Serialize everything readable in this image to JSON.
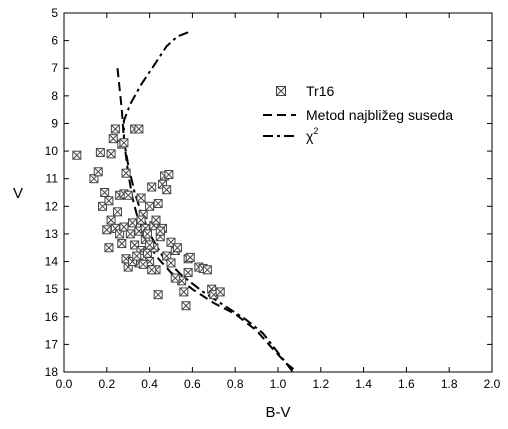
{
  "chart_data": {
    "type": "scatter",
    "xlabel": "B-V",
    "ylabel": "V",
    "xlim": [
      0.0,
      2.0
    ],
    "ylim": [
      5,
      18
    ],
    "y_inverted": true,
    "x_ticks": [
      "0.0",
      "0.2",
      "0.4",
      "0.6",
      "0.8",
      "1.0",
      "1.2",
      "1.4",
      "1.6",
      "1.8",
      "2.0"
    ],
    "y_ticks": [
      "5",
      "6",
      "7",
      "8",
      "9",
      "10",
      "11",
      "12",
      "13",
      "14",
      "15",
      "16",
      "17",
      "18"
    ],
    "legend_position": "top-right",
    "legend": {
      "tr16": "Tr16",
      "dashed": "Metod najbližeg suseda",
      "chi_base": "χ",
      "chi_sup": "2"
    },
    "series": [
      {
        "name": "Tr16",
        "kind": "points",
        "marker": "crossed-square",
        "points": [
          [
            0.06,
            10.15
          ],
          [
            0.14,
            11.0
          ],
          [
            0.16,
            10.75
          ],
          [
            0.17,
            10.05
          ],
          [
            0.19,
            11.5
          ],
          [
            0.22,
            10.1
          ],
          [
            0.23,
            9.55
          ],
          [
            0.24,
            9.2
          ],
          [
            0.27,
            9.75
          ],
          [
            0.28,
            9.7
          ],
          [
            0.33,
            9.2
          ],
          [
            0.35,
            9.2
          ],
          [
            0.29,
            10.8
          ],
          [
            0.18,
            12.0
          ],
          [
            0.21,
            11.8
          ],
          [
            0.22,
            12.5
          ],
          [
            0.25,
            12.2
          ],
          [
            0.26,
            11.6
          ],
          [
            0.28,
            11.55
          ],
          [
            0.3,
            11.6
          ],
          [
            0.24,
            12.8
          ],
          [
            0.2,
            12.85
          ],
          [
            0.21,
            13.5
          ],
          [
            0.26,
            13.0
          ],
          [
            0.27,
            13.35
          ],
          [
            0.28,
            12.75
          ],
          [
            0.29,
            13.9
          ],
          [
            0.3,
            14.2
          ],
          [
            0.31,
            13.0
          ],
          [
            0.32,
            12.6
          ],
          [
            0.33,
            13.4
          ],
          [
            0.35,
            12.9
          ],
          [
            0.36,
            13.6
          ],
          [
            0.36,
            11.7
          ],
          [
            0.37,
            12.3
          ],
          [
            0.38,
            12.8
          ],
          [
            0.38,
            13.2
          ],
          [
            0.39,
            13.7
          ],
          [
            0.4,
            14.0
          ],
          [
            0.4,
            12.0
          ],
          [
            0.41,
            11.3
          ],
          [
            0.42,
            12.7
          ],
          [
            0.42,
            13.5
          ],
          [
            0.43,
            14.3
          ],
          [
            0.44,
            11.9
          ],
          [
            0.45,
            13.1
          ],
          [
            0.46,
            12.8
          ],
          [
            0.46,
            11.2
          ],
          [
            0.47,
            10.9
          ],
          [
            0.48,
            11.4
          ],
          [
            0.49,
            10.85
          ],
          [
            0.5,
            13.3
          ],
          [
            0.52,
            13.6
          ],
          [
            0.53,
            13.5
          ],
          [
            0.55,
            14.7
          ],
          [
            0.56,
            15.1
          ],
          [
            0.57,
            15.6
          ],
          [
            0.58,
            14.4
          ],
          [
            0.58,
            13.9
          ],
          [
            0.59,
            13.85
          ],
          [
            0.63,
            14.2
          ],
          [
            0.65,
            14.25
          ],
          [
            0.67,
            14.3
          ],
          [
            0.69,
            15.0
          ],
          [
            0.7,
            15.2
          ],
          [
            0.73,
            15.1
          ],
          [
            0.44,
            15.2
          ],
          [
            0.41,
            14.3
          ],
          [
            0.35,
            14.05
          ],
          [
            0.32,
            14.0
          ],
          [
            0.34,
            13.8
          ],
          [
            0.37,
            14.1
          ],
          [
            0.39,
            13.0
          ],
          [
            0.43,
            12.5
          ],
          [
            0.45,
            12.9
          ],
          [
            0.48,
            13.8
          ],
          [
            0.5,
            14.05
          ],
          [
            0.52,
            14.6
          ],
          [
            0.4,
            13.4
          ],
          [
            0.36,
            12.5
          ]
        ]
      },
      {
        "name": "Metod najbližeg suseda",
        "kind": "line",
        "dash": "dashed",
        "points": [
          [
            0.25,
            7.0
          ],
          [
            0.27,
            8.5
          ],
          [
            0.28,
            9.6
          ],
          [
            0.3,
            10.8
          ],
          [
            0.32,
            11.7
          ],
          [
            0.34,
            12.3
          ],
          [
            0.38,
            13.1
          ],
          [
            0.43,
            13.8
          ],
          [
            0.5,
            14.4
          ],
          [
            0.6,
            15.0
          ],
          [
            0.7,
            15.5
          ],
          [
            0.8,
            15.9
          ],
          [
            0.9,
            16.5
          ],
          [
            0.98,
            17.2
          ],
          [
            1.04,
            17.7
          ],
          [
            1.09,
            18.0
          ]
        ]
      },
      {
        "name": "χ2",
        "kind": "line",
        "dash": "dash-dot",
        "points": [
          [
            0.58,
            5.7
          ],
          [
            0.53,
            5.85
          ],
          [
            0.48,
            6.2
          ],
          [
            0.42,
            6.9
          ],
          [
            0.36,
            7.6
          ],
          [
            0.31,
            8.3
          ],
          [
            0.28,
            8.9
          ],
          [
            0.28,
            9.6
          ],
          [
            0.3,
            10.5
          ],
          [
            0.33,
            11.5
          ],
          [
            0.36,
            12.2
          ],
          [
            0.4,
            13.0
          ],
          [
            0.46,
            13.8
          ],
          [
            0.55,
            14.5
          ],
          [
            0.65,
            15.1
          ],
          [
            0.75,
            15.6
          ],
          [
            0.85,
            16.1
          ],
          [
            0.93,
            16.6
          ],
          [
            0.97,
            17.0
          ],
          [
            1.02,
            17.5
          ],
          [
            1.07,
            18.0
          ]
        ]
      }
    ]
  }
}
